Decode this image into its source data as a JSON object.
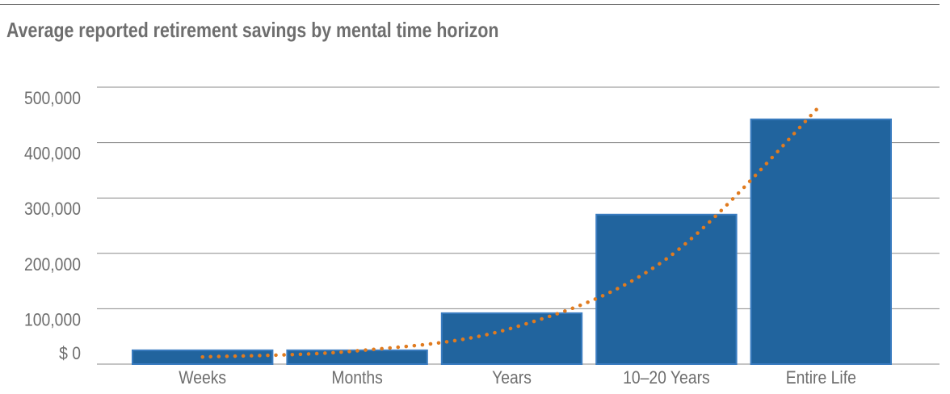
{
  "chart_data": {
    "type": "bar",
    "title": "Average reported retirement savings by mental time horizon",
    "xlabel": "",
    "ylabel": "",
    "categories": [
      "Weeks",
      "Months",
      "Years",
      "10–20 Years",
      "Entire Life"
    ],
    "values": [
      25000,
      25000,
      92000,
      270000,
      442000
    ],
    "ylim": [
      0,
      500000
    ],
    "yticks": [
      0,
      100000,
      200000,
      300000,
      400000,
      500000
    ],
    "ytick_labels": [
      "$ 0",
      "100,000",
      "200,000",
      "300,000",
      "400,000",
      "500,000"
    ],
    "grid": true,
    "legend": "none",
    "trendline": {
      "style": "dotted",
      "kind": "exponential",
      "x": [
        "Weeks",
        "Months",
        "Years",
        "10–20 Years",
        "Entire Life"
      ],
      "values": [
        13000,
        24000,
        65000,
        190000,
        468000
      ]
    },
    "colors": {
      "bar_fill": "#21649e",
      "bar_border": "#3a7cc0",
      "trendline": "#e07b1f",
      "gridline": "#8a8a8a",
      "text": "#6e6e6e"
    }
  }
}
